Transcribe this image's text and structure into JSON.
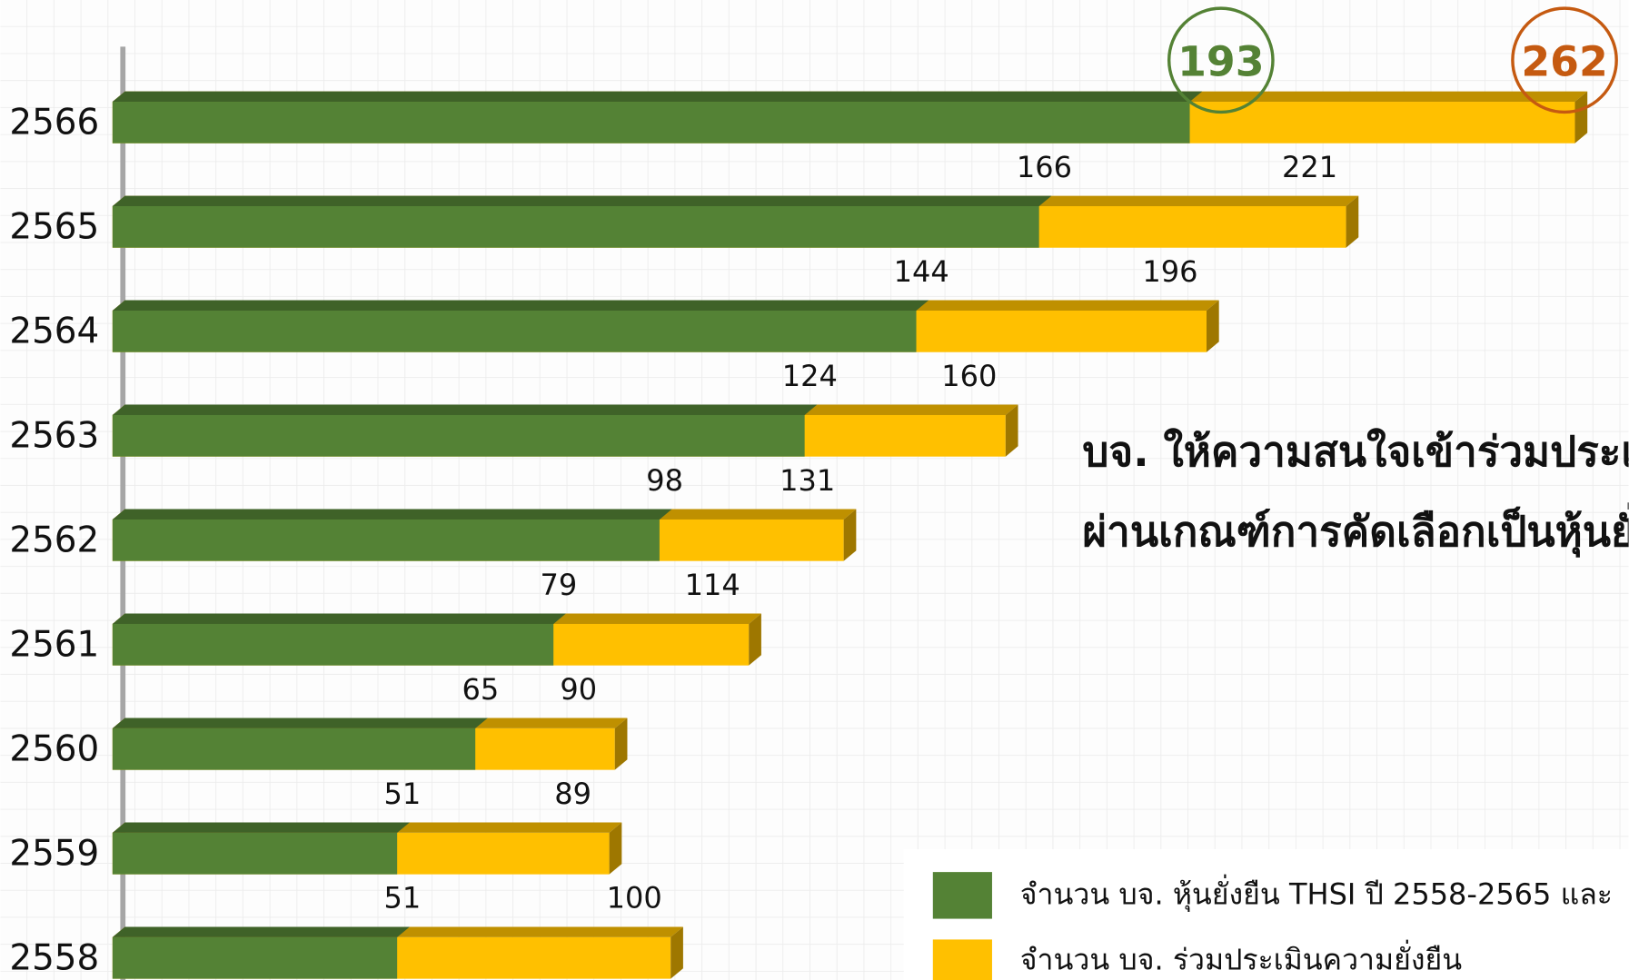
{
  "chart_data": {
    "type": "bar",
    "orientation": "horizontal",
    "categories": [
      "2566",
      "2565",
      "2564",
      "2563",
      "2562",
      "2561",
      "2560",
      "2559",
      "2558"
    ],
    "series": [
      {
        "name": "จำนวน บจ. ร่วมประเมินความยั่งยืน",
        "color": "#ffc000",
        "values": [
          262,
          221,
          196,
          160,
          131,
          114,
          90,
          89,
          100
        ]
      },
      {
        "name": "จำนวน บจ. หุ้นยั่งยืน THSI ปี 2558-2565 และ",
        "color": "#548235",
        "values": [
          193,
          166,
          144,
          124,
          98,
          79,
          65,
          51,
          51
        ]
      }
    ],
    "annotations": [
      "บจ. ให้ความสนใจเข้าร่วมประเมิน",
      "ผ่านเกณฑ์การคัดเลือกเป็นหุ้นยั่งยืน"
    ]
  }
}
